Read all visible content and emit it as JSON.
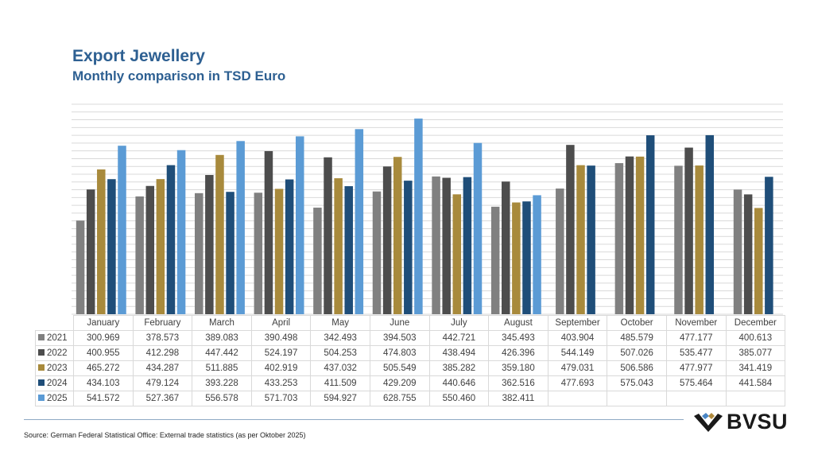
{
  "header": {
    "title": "Export Jewellery",
    "subtitle": "Monthly comparison in TSD Euro"
  },
  "chart_data": {
    "type": "bar",
    "title": "Export Jewellery",
    "subtitle": "Monthly comparison in TSD Euro",
    "xlabel": "",
    "ylabel": "TSD Euro",
    "ylim": [
      0,
      675
    ],
    "grid": true,
    "categories": [
      "January",
      "February",
      "March",
      "April",
      "May",
      "June",
      "July",
      "August",
      "September",
      "October",
      "November",
      "December"
    ],
    "series": [
      {
        "name": "2021",
        "color": "#808080",
        "values": [
          300.969,
          378.573,
          389.083,
          390.498,
          342.493,
          394.503,
          442.721,
          345.493,
          403.904,
          485.579,
          477.177,
          400.613
        ],
        "labels": [
          "300.969",
          "378.573",
          "389.083",
          "390.498",
          "342.493",
          "394.503",
          "442.721",
          "345.493",
          "403.904",
          "485.579",
          "477.177",
          "400.613"
        ]
      },
      {
        "name": "2022",
        "color": "#4d4d4d",
        "values": [
          400.955,
          412.298,
          447.442,
          524.197,
          504.253,
          474.803,
          438.494,
          426.396,
          544.149,
          507.026,
          535.477,
          385.077
        ],
        "labels": [
          "400.955",
          "412.298",
          "447.442",
          "524.197",
          "504.253",
          "474.803",
          "438.494",
          "426.396",
          "544.149",
          "507.026",
          "535.477",
          "385.077"
        ]
      },
      {
        "name": "2023",
        "color": "#a88a3c",
        "values": [
          465.272,
          434.287,
          511.885,
          402.919,
          437.032,
          505.549,
          385.282,
          359.18,
          479.031,
          506.586,
          477.977,
          341.419
        ],
        "labels": [
          "465.272",
          "434.287",
          "511.885",
          "402.919",
          "437.032",
          "505.549",
          "385.282",
          "359.180",
          "479.031",
          "506.586",
          "477.977",
          "341.419"
        ]
      },
      {
        "name": "2024",
        "color": "#1f4e79",
        "values": [
          434.103,
          479.124,
          393.228,
          433.253,
          411.509,
          429.209,
          440.646,
          362.516,
          477.693,
          575.043,
          575.464,
          441.584
        ],
        "labels": [
          "434.103",
          "479.124",
          "393.228",
          "433.253",
          "411.509",
          "429.209",
          "440.646",
          "362.516",
          "477.693",
          "575.043",
          "575.464",
          "441.584"
        ]
      },
      {
        "name": "2025",
        "color": "#5b9bd5",
        "values": [
          541.572,
          527.367,
          556.578,
          571.703,
          594.927,
          628.755,
          550.46,
          382.411,
          null,
          null,
          null,
          null
        ],
        "labels": [
          "541.572",
          "527.367",
          "556.578",
          "571.703",
          "594.927",
          "628.755",
          "550.460",
          "382.411",
          "",
          "",
          "",
          ""
        ]
      }
    ]
  },
  "footer": {
    "source": "Source: German Federal Statistical Office: External trade statistics (as per Oktober 2025)",
    "logo_text": "BVSU"
  }
}
